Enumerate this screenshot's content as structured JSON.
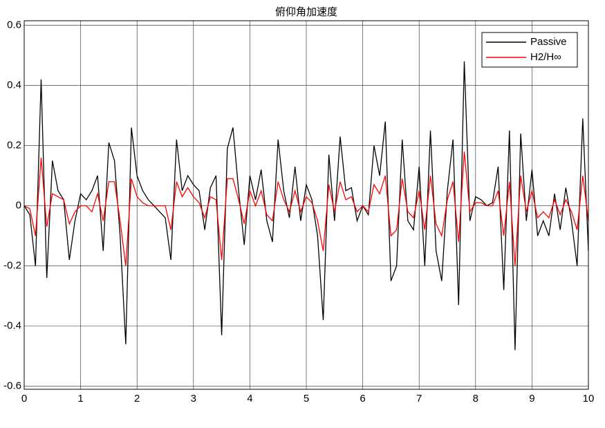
{
  "chart_data": {
    "type": "line",
    "title": "俯仰角加速度",
    "x": [
      0,
      0.1,
      0.2,
      0.3,
      0.4,
      0.5,
      0.6,
      0.7,
      0.8,
      0.9,
      1,
      1.1,
      1.2,
      1.3,
      1.4,
      1.5,
      1.6,
      1.7,
      1.8,
      1.9,
      2,
      2.1,
      2.2,
      2.3,
      2.4,
      2.5,
      2.6,
      2.7,
      2.8,
      2.9,
      3,
      3.1,
      3.2,
      3.3,
      3.4,
      3.5,
      3.6,
      3.7,
      3.8,
      3.9,
      4,
      4.1,
      4.2,
      4.3,
      4.4,
      4.5,
      4.6,
      4.7,
      4.8,
      4.9,
      5,
      5.1,
      5.2,
      5.3,
      5.4,
      5.5,
      5.6,
      5.7,
      5.8,
      5.9,
      6,
      6.1,
      6.2,
      6.3,
      6.4,
      6.5,
      6.6,
      6.7,
      6.8,
      6.9,
      7,
      7.1,
      7.2,
      7.3,
      7.4,
      7.5,
      7.6,
      7.7,
      7.8,
      7.9,
      8,
      8.1,
      8.2,
      8.3,
      8.4,
      8.5,
      8.6,
      8.7,
      8.8,
      8.9,
      9,
      9.1,
      9.2,
      9.3,
      9.4,
      9.5,
      9.6,
      9.7,
      9.8,
      9.9,
      10
    ],
    "series": [
      {
        "name": "Passive",
        "color": "#000000",
        "values": [
          0,
          -0.03,
          -0.2,
          0.42,
          -0.24,
          0.15,
          0.05,
          0.02,
          -0.18,
          -0.05,
          0.04,
          0.02,
          0.05,
          0.1,
          -0.15,
          0.21,
          0.15,
          -0.1,
          -0.46,
          0.26,
          0.1,
          0.05,
          0.02,
          0,
          -0.02,
          -0.04,
          -0.18,
          0.22,
          0.05,
          0.1,
          0.07,
          0.05,
          -0.08,
          0.06,
          0.1,
          -0.43,
          0.19,
          0.26,
          0.05,
          -0.13,
          0.1,
          0.02,
          0.12,
          -0.05,
          -0.12,
          0.22,
          0.05,
          -0.04,
          0.13,
          -0.05,
          0.07,
          0.02,
          -0.1,
          -0.38,
          0.17,
          -0.05,
          0.23,
          0.05,
          0.06,
          -0.05,
          0,
          -0.03,
          0.2,
          0.1,
          0.28,
          -0.25,
          -0.2,
          0.22,
          -0.05,
          -0.08,
          0.13,
          -0.2,
          0.25,
          -0.15,
          -0.25,
          0.05,
          0.22,
          -0.33,
          0.48,
          -0.05,
          0.03,
          0.02,
          0,
          0.01,
          0.13,
          -0.28,
          0.25,
          -0.48,
          0.24,
          -0.05,
          0.12,
          -0.1,
          -0.05,
          -0.1,
          0.04,
          -0.08,
          0.06,
          -0.05,
          -0.2,
          0.29,
          -0.15
        ]
      },
      {
        "name": "H2/H∞",
        "color": "#ff0000",
        "values": [
          0,
          -0.01,
          -0.1,
          0.16,
          -0.07,
          0.04,
          0.03,
          0.02,
          -0.06,
          -0.02,
          0,
          0,
          -0.02,
          0.04,
          -0.05,
          0.08,
          0.08,
          -0.05,
          -0.2,
          0.09,
          0.03,
          0.01,
          0,
          0,
          0,
          0,
          -0.08,
          0.08,
          0.03,
          0.06,
          0.03,
          0.01,
          -0.04,
          0.03,
          0.02,
          -0.18,
          0.09,
          0.09,
          0.02,
          -0.06,
          0.05,
          0,
          0.05,
          -0.03,
          -0.05,
          0.08,
          0.02,
          -0.02,
          0.05,
          -0.02,
          0.03,
          0.01,
          -0.05,
          -0.15,
          0.07,
          -0.02,
          0.08,
          0.02,
          0.03,
          -0.02,
          0,
          -0.02,
          0.07,
          0.04,
          0.1,
          -0.1,
          -0.08,
          0.09,
          -0.02,
          -0.04,
          0.05,
          -0.08,
          0.1,
          -0.06,
          -0.1,
          0.02,
          0.08,
          -0.12,
          0.18,
          -0.02,
          0.01,
          0.01,
          0,
          0,
          0.05,
          -0.1,
          0.08,
          -0.2,
          0.1,
          -0.02,
          0.05,
          -0.04,
          -0.02,
          -0.04,
          0.02,
          -0.03,
          0.02,
          -0.02,
          -0.08,
          0.1,
          -0.05
        ]
      }
    ],
    "xlim": [
      0,
      10
    ],
    "xticks": [
      0,
      1,
      2,
      3,
      4,
      5,
      6,
      7,
      8,
      9,
      10
    ],
    "ylim": [
      -0.61,
      0.615
    ],
    "yticks": [
      -0.6,
      -0.4,
      -0.2,
      0,
      0.2,
      0.4,
      0.6
    ],
    "grid": true,
    "legend": "upper-right"
  }
}
